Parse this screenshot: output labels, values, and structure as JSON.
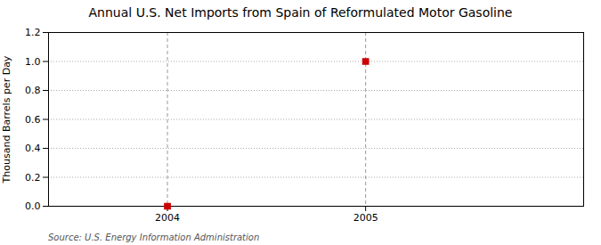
{
  "chart_data": {
    "type": "scatter",
    "title": "Annual U.S. Net Imports from Spain of Reformulated Motor Gasoline",
    "ylabel": "Thousand Barrels per Day",
    "caption": "Source: U.S. Energy Information Administration",
    "x": [
      2004,
      2005
    ],
    "values": [
      0,
      1.0
    ],
    "color": "#cc0000",
    "marker": "square",
    "xlim": [
      2003.4,
      2006.1
    ],
    "xticks": [
      2004,
      2005
    ],
    "ylim": [
      0,
      1.2
    ],
    "yticks": [
      {
        "value": 0.0,
        "label": "0.0"
      },
      0.2,
      0.4,
      0.6,
      0.8,
      {
        "value": 1.0,
        "label": "1.0"
      },
      1.2
    ],
    "grid": true
  }
}
